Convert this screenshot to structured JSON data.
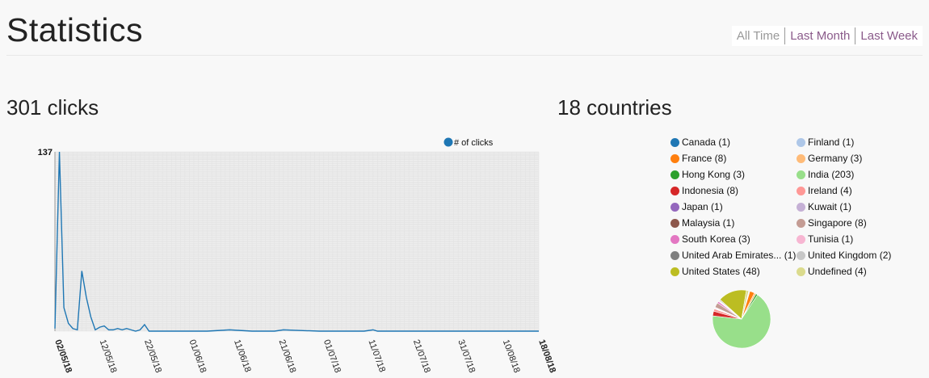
{
  "header": {
    "title": "Statistics",
    "tabs": [
      "All Time",
      "Last Month",
      "Last Week"
    ]
  },
  "clicks": {
    "title": "301 clicks"
  },
  "countries": {
    "title": "18 countries"
  },
  "colors": {
    "line": "#1f77b4",
    "tab_active": "#999999",
    "tab_link": "#8a5a8a"
  },
  "chart_data": [
    {
      "type": "line",
      "series": [
        {
          "name": "# of clicks",
          "x": [
            "02/05/18",
            "03/05/18",
            "04/05/18",
            "05/05/18",
            "06/05/18",
            "07/05/18",
            "08/05/18",
            "09/05/18",
            "10/05/18",
            "11/05/18",
            "12/05/18",
            "13/05/18",
            "14/05/18",
            "15/05/18",
            "16/05/18",
            "17/05/18",
            "18/05/18",
            "19/05/18",
            "20/05/18",
            "21/05/18",
            "22/05/18",
            "23/05/18",
            "24/05/18",
            "30/05/18",
            "05/06/18",
            "10/06/18",
            "15/06/18",
            "20/06/18",
            "22/06/18",
            "30/06/18",
            "10/07/18",
            "12/07/18",
            "13/07/18",
            "20/07/18",
            "31/07/18",
            "10/08/18",
            "18/08/18"
          ],
          "values": [
            2,
            137,
            18,
            6,
            2,
            1,
            46,
            26,
            11,
            1,
            3,
            4,
            1,
            1,
            2,
            1,
            2,
            1,
            0,
            1,
            5,
            0,
            0,
            0,
            0,
            1,
            0,
            0,
            1,
            0,
            0,
            1,
            0,
            0,
            0,
            0,
            0
          ]
        }
      ],
      "xticks": [
        "02/05/18",
        "12/05/18",
        "22/05/18",
        "01/06/18",
        "11/06/18",
        "21/06/18",
        "01/07/18",
        "11/07/18",
        "21/07/18",
        "31/07/18",
        "10/08/18",
        "18/08/18"
      ],
      "ylim": [
        0,
        137
      ],
      "ymax_label": "137",
      "legend_position": "top-right",
      "grid": true
    },
    {
      "type": "pie",
      "slices": [
        {
          "label": "Canada",
          "value": 1,
          "color": "#1f77b4"
        },
        {
          "label": "Finland",
          "value": 1,
          "color": "#aec7e8"
        },
        {
          "label": "France",
          "value": 8,
          "color": "#ff7f0e"
        },
        {
          "label": "Germany",
          "value": 3,
          "color": "#ffbb78"
        },
        {
          "label": "Hong Kong",
          "value": 3,
          "color": "#2ca02c"
        },
        {
          "label": "India",
          "value": 203,
          "color": "#98df8a"
        },
        {
          "label": "Indonesia",
          "value": 8,
          "color": "#d62728"
        },
        {
          "label": "Ireland",
          "value": 4,
          "color": "#ff9896"
        },
        {
          "label": "Japan",
          "value": 1,
          "color": "#9467bd"
        },
        {
          "label": "Kuwait",
          "value": 1,
          "color": "#c5b0d5"
        },
        {
          "label": "Malaysia",
          "value": 1,
          "color": "#8c564b"
        },
        {
          "label": "Singapore",
          "value": 8,
          "color": "#c49c94"
        },
        {
          "label": "South Korea",
          "value": 3,
          "color": "#e377c2"
        },
        {
          "label": "Tunisia",
          "value": 1,
          "color": "#f7b6d2"
        },
        {
          "label": "United Arab Emirates...",
          "value": 1,
          "color": "#7f7f7f"
        },
        {
          "label": "United Kingdom",
          "value": 2,
          "color": "#c7c7c7"
        },
        {
          "label": "United States",
          "value": 48,
          "color": "#bcbd22"
        },
        {
          "label": "Undefined",
          "value": 4,
          "color": "#dbdb8d"
        }
      ],
      "legend_position": "top"
    }
  ]
}
